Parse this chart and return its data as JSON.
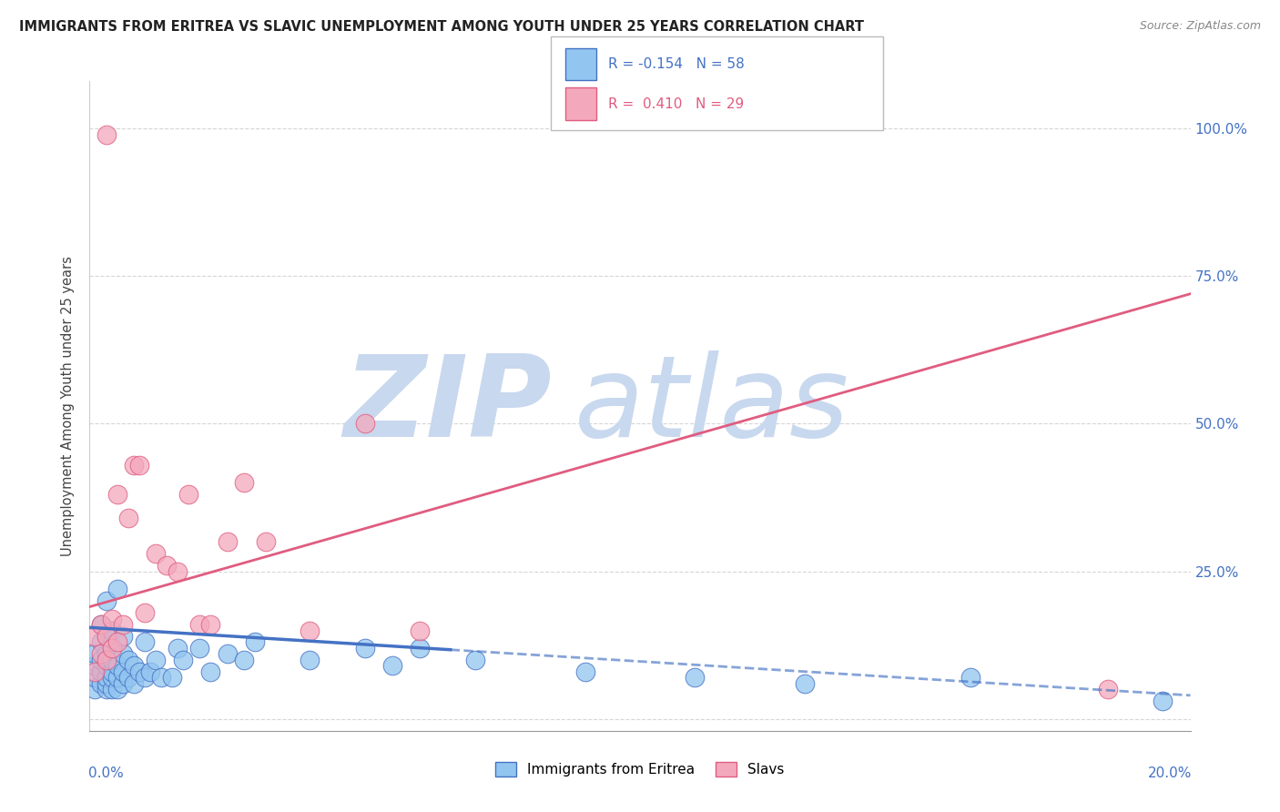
{
  "title": "IMMIGRANTS FROM ERITREA VS SLAVIC UNEMPLOYMENT AMONG YOUTH UNDER 25 YEARS CORRELATION CHART",
  "source": "Source: ZipAtlas.com",
  "ylabel": "Unemployment Among Youth under 25 years",
  "r_eritrea": -0.154,
  "n_eritrea": 58,
  "r_slavs": 0.41,
  "n_slavs": 29,
  "color_eritrea": "#92c5f0",
  "color_slavs": "#f4a8bc",
  "color_eritrea_dark": "#4472c4",
  "color_slavs_dark": "#e05c80",
  "watermark_zip": "ZIP",
  "watermark_atlas": "atlas",
  "watermark_color_zip": "#c8d8ee",
  "watermark_color_atlas": "#c8d8ee",
  "blue_x": [
    0.001,
    0.001,
    0.001,
    0.001,
    0.002,
    0.002,
    0.002,
    0.002,
    0.002,
    0.003,
    0.003,
    0.003,
    0.003,
    0.003,
    0.003,
    0.003,
    0.004,
    0.004,
    0.004,
    0.004,
    0.004,
    0.004,
    0.005,
    0.005,
    0.005,
    0.005,
    0.006,
    0.006,
    0.006,
    0.006,
    0.007,
    0.007,
    0.008,
    0.008,
    0.009,
    0.01,
    0.01,
    0.011,
    0.012,
    0.013,
    0.015,
    0.016,
    0.017,
    0.02,
    0.022,
    0.025,
    0.028,
    0.03,
    0.04,
    0.05,
    0.055,
    0.06,
    0.07,
    0.09,
    0.11,
    0.13,
    0.16,
    0.195
  ],
  "blue_y": [
    0.05,
    0.07,
    0.09,
    0.11,
    0.06,
    0.08,
    0.1,
    0.13,
    0.16,
    0.05,
    0.06,
    0.07,
    0.09,
    0.11,
    0.14,
    0.2,
    0.05,
    0.07,
    0.08,
    0.1,
    0.12,
    0.15,
    0.05,
    0.07,
    0.09,
    0.22,
    0.06,
    0.08,
    0.11,
    0.14,
    0.07,
    0.1,
    0.06,
    0.09,
    0.08,
    0.07,
    0.13,
    0.08,
    0.1,
    0.07,
    0.07,
    0.12,
    0.1,
    0.12,
    0.08,
    0.11,
    0.1,
    0.13,
    0.1,
    0.12,
    0.09,
    0.12,
    0.1,
    0.08,
    0.07,
    0.06,
    0.07,
    0.03
  ],
  "pink_x": [
    0.001,
    0.001,
    0.002,
    0.002,
    0.003,
    0.003,
    0.003,
    0.004,
    0.004,
    0.005,
    0.005,
    0.006,
    0.007,
    0.008,
    0.009,
    0.01,
    0.012,
    0.014,
    0.016,
    0.018,
    0.02,
    0.022,
    0.025,
    0.028,
    0.032,
    0.04,
    0.05,
    0.06,
    0.185
  ],
  "pink_y": [
    0.08,
    0.14,
    0.11,
    0.16,
    0.1,
    0.14,
    0.99,
    0.12,
    0.17,
    0.13,
    0.38,
    0.16,
    0.34,
    0.43,
    0.43,
    0.18,
    0.28,
    0.26,
    0.25,
    0.38,
    0.16,
    0.16,
    0.3,
    0.4,
    0.3,
    0.15,
    0.5,
    0.15,
    0.05
  ],
  "xmin": 0.0,
  "xmax": 0.2,
  "ymin": -0.02,
  "ymax": 1.08,
  "yticks": [
    0.0,
    0.25,
    0.5,
    0.75,
    1.0
  ],
  "ytick_labels": [
    "",
    "25.0%",
    "50.0%",
    "75.0%",
    "100.0%"
  ],
  "xtick_labels_show": [
    "0.0%",
    "20.0%"
  ]
}
